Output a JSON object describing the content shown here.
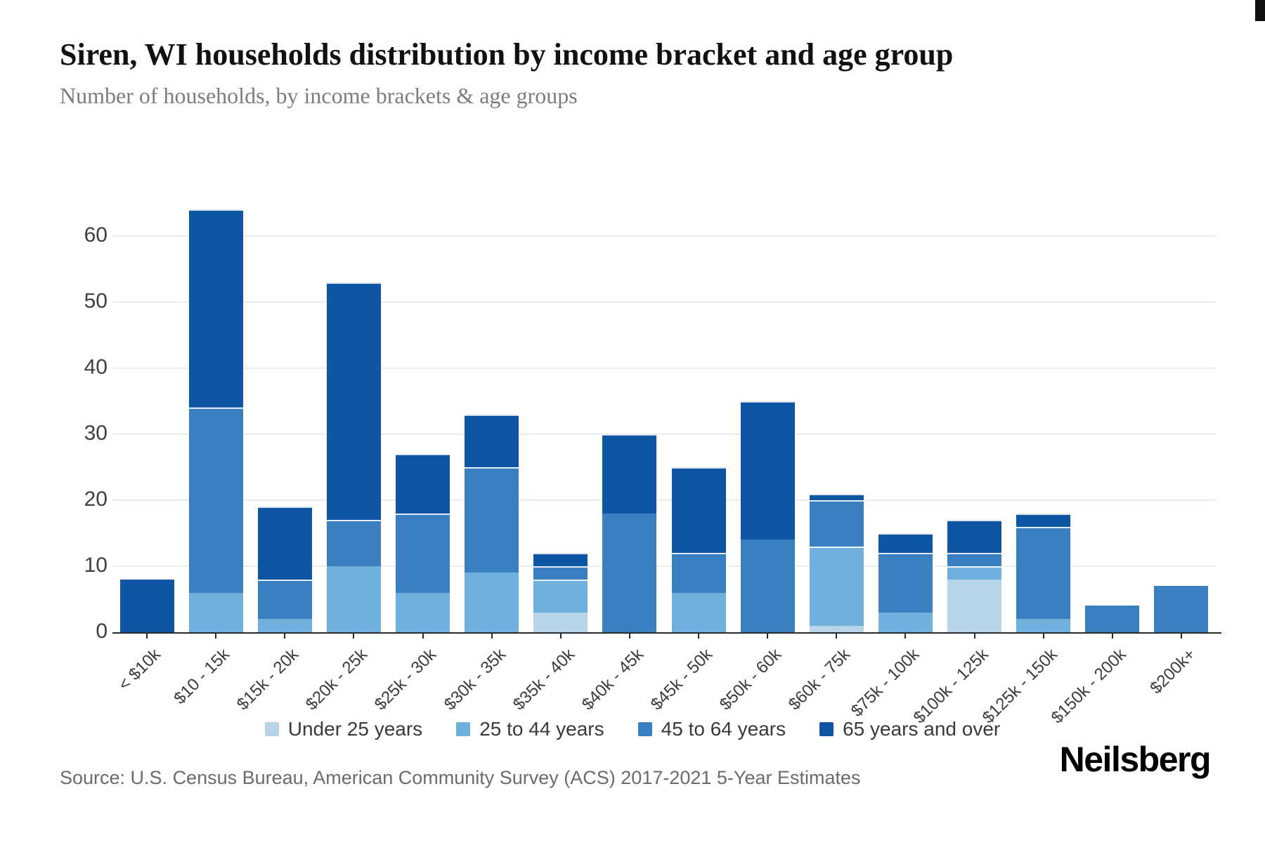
{
  "page": {
    "title": "Siren, WI households distribution by income bracket and age group",
    "subtitle": "Number of households, by income brackets & age groups",
    "source": "Source: U.S. Census Bureau, American Community Survey (ACS) 2017-2021 5-Year Estimates",
    "brand": "Neilsberg"
  },
  "chart_data": {
    "type": "bar",
    "stacked": true,
    "title": "Siren, WI households distribution by income bracket and age group",
    "subtitle": "Number of households, by income brackets & age groups",
    "xlabel": "",
    "ylabel": "Number of households",
    "ylim": [
      0,
      66
    ],
    "yticks": [
      0,
      10,
      20,
      30,
      40,
      50,
      60
    ],
    "grid": true,
    "legend_position": "bottom",
    "categories": [
      "< $10k",
      "$10 - 15k",
      "$15k - 20k",
      "$20k - 25k",
      "$25k - 30k",
      "$30k - 35k",
      "$35k - 40k",
      "$40k - 45k",
      "$45k - 50k",
      "$50k - 60k",
      "$60k - 75k",
      "$75k - 100k",
      "$100k - 125k",
      "$125k - 150k",
      "$150k - 200k",
      "$200k+"
    ],
    "series": [
      {
        "name": "Under 25 years",
        "color": "#b8d4e8",
        "values": [
          0,
          0,
          0,
          0,
          0,
          0,
          3,
          0,
          0,
          0,
          1,
          0,
          8,
          0,
          0,
          0
        ]
      },
      {
        "name": "25 to 44 years",
        "color": "#6fb0dd",
        "values": [
          0,
          6,
          2,
          10,
          6,
          9,
          5,
          0,
          6,
          0,
          12,
          3,
          2,
          2,
          0,
          0
        ]
      },
      {
        "name": "45 to 64 years",
        "color": "#3a80c1",
        "values": [
          0,
          28,
          6,
          7,
          12,
          16,
          2,
          18,
          6,
          14,
          7,
          9,
          2,
          14,
          4,
          7
        ]
      },
      {
        "name": "65 years and over",
        "color": "#0e56a4",
        "values": [
          8,
          30,
          11,
          36,
          9,
          8,
          2,
          12,
          13,
          21,
          1,
          3,
          5,
          2,
          0,
          0
        ]
      }
    ],
    "totals": [
      8,
      64,
      19,
      53,
      27,
      33,
      12,
      30,
      25,
      35,
      21,
      15,
      17,
      18,
      4,
      7
    ]
  }
}
